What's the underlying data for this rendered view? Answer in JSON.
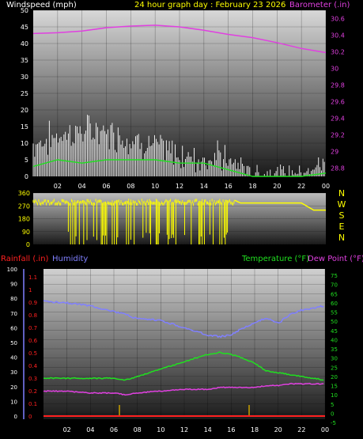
{
  "header": {
    "left_title": "Windspeed (mph)",
    "center_title": "24 hour graph day : February 23 2026",
    "right_title": "Barometer (.in)"
  },
  "colors": {
    "white": "#ffffff",
    "magenta": "#e040e0",
    "yellow": "#ffff00",
    "green": "#20e020",
    "blue": "#8080ff",
    "red": "#ff2020"
  },
  "chart_data": [
    {
      "type": "line",
      "name": "wind-barometer",
      "x_ticks": [
        "02",
        "04",
        "06",
        "08",
        "10",
        "12",
        "14",
        "16",
        "18",
        "20",
        "22",
        "00"
      ],
      "left_axis": {
        "label": "Windspeed (mph)",
        "ticks": [
          0,
          5,
          10,
          15,
          20,
          25,
          30,
          35,
          40,
          45,
          50
        ],
        "range": [
          0,
          50
        ]
      },
      "right_axis": {
        "label": "Barometer (.in)",
        "ticks": [
          "28.8",
          "29",
          "29.2",
          "29.4",
          "29.6",
          "29.8",
          "30",
          "30.2",
          "30.4",
          "30.6"
        ],
        "range": [
          28.7,
          30.7
        ]
      },
      "barometer_x": [
        0,
        2,
        4,
        6,
        8,
        10,
        12,
        14,
        16,
        18,
        20,
        22,
        24
      ],
      "barometer": [
        30.42,
        30.43,
        30.45,
        30.49,
        30.51,
        30.52,
        30.5,
        30.46,
        30.41,
        30.37,
        30.31,
        30.24,
        30.19
      ],
      "wind_speed_avg_x": [
        0,
        2,
        4,
        6,
        8,
        10,
        12,
        14,
        16,
        18,
        20,
        22,
        24
      ],
      "wind_speed_avg": [
        3,
        5,
        4,
        5,
        5,
        5,
        4,
        4,
        2,
        0,
        0,
        0,
        1
      ]
    },
    {
      "type": "line",
      "name": "wind-direction",
      "left_ticks": [
        "360",
        "270",
        "180",
        "90",
        "0"
      ],
      "right_labels": [
        "N",
        "W",
        "S",
        "E",
        "N"
      ],
      "range": [
        0,
        360
      ],
      "direction_x": [
        0,
        2.5,
        2.6,
        2.7,
        3,
        5,
        6,
        8,
        10,
        12,
        14,
        15,
        16,
        16.5,
        17,
        18,
        20,
        22,
        23,
        24
      ],
      "direction": [
        320,
        310,
        0,
        300,
        320,
        310,
        290,
        300,
        320,
        300,
        310,
        300,
        320,
        310,
        290,
        290,
        290,
        290,
        240,
        240
      ]
    },
    {
      "type": "line",
      "name": "temp-humidity",
      "x_ticks": [
        "02",
        "04",
        "06",
        "08",
        "10",
        "12",
        "14",
        "16",
        "18",
        "20",
        "22",
        "00"
      ],
      "humidity_ticks": [
        "0",
        "10",
        "20",
        "30",
        "40",
        "50",
        "60",
        "70",
        "80",
        "90",
        "100"
      ],
      "rain_ticks": [
        "0",
        "0.1",
        "0.2",
        "0.3",
        "0.4",
        "0.5",
        "0.6",
        "0.7",
        "0.8",
        "0.9",
        "1",
        "1.1"
      ],
      "temp_ticks": [
        "-5",
        "0",
        "5",
        "10",
        "15",
        "20",
        "25",
        "30",
        "35",
        "40",
        "45",
        "50",
        "55",
        "60",
        "65",
        "70",
        "75"
      ],
      "labels": {
        "rain": "Rainfall (.in)",
        "humidity": "Humidity",
        "temperature": "Temperature (°F)",
        "dewpoint": "Dew Point (°F)"
      },
      "x": [
        0,
        2,
        4,
        6,
        7,
        8,
        10,
        12,
        14,
        15,
        16,
        17,
        18,
        19,
        20,
        21,
        22,
        24
      ],
      "humidity": [
        78,
        77,
        75,
        71,
        69,
        66,
        65,
        60,
        55,
        54,
        55,
        60,
        63,
        67,
        63,
        69,
        72,
        75
      ],
      "temperature": [
        19,
        19,
        19,
        19,
        18,
        20,
        24,
        28,
        32,
        33,
        32,
        30,
        27,
        23,
        22,
        21,
        20,
        18
      ],
      "dewpoint": [
        12,
        12,
        11,
        11,
        10,
        11,
        12,
        13,
        13,
        14,
        14,
        14,
        14,
        15,
        15,
        16,
        16,
        16
      ],
      "rain": [
        0,
        0,
        0,
        0,
        0,
        0,
        0,
        0,
        0,
        0,
        0,
        0,
        0,
        0,
        0,
        0,
        0,
        0
      ]
    }
  ]
}
